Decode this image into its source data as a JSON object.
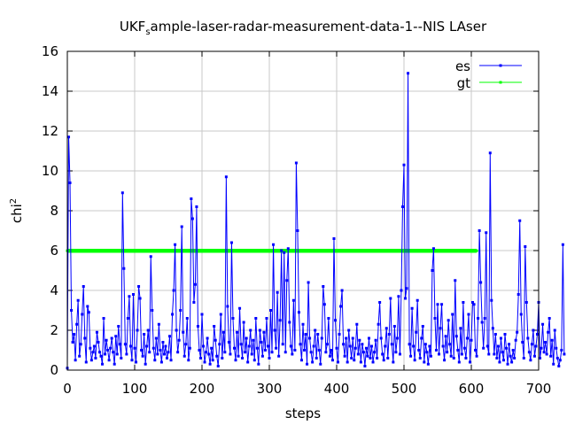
{
  "chart_data": {
    "type": "line",
    "title_main": "UKF",
    "title_sub": "s",
    "title_rest": "ample-laser-radar-measurement-data-1--NIS LAser",
    "xlabel": "steps",
    "ylabel_base": "chi",
    "ylabel_sup": "2",
    "xlim": [
      0,
      700
    ],
    "ylim": [
      0,
      16
    ],
    "xticks": [
      "0",
      "100",
      "200",
      "300",
      "400",
      "500",
      "600",
      "700"
    ],
    "yticks": [
      "0",
      "2",
      "4",
      "6",
      "8",
      "10",
      "12",
      "14",
      "16"
    ],
    "grid": true,
    "legend_position": "top-right",
    "series": [
      {
        "name": "es",
        "color": "#0000ff",
        "x_start": 0,
        "x_step": 2,
        "values": [
          0.1,
          11.7,
          9.4,
          3.0,
          1.4,
          1.8,
          0.5,
          2.3,
          3.5,
          0.7,
          1.3,
          2.8,
          4.2,
          1.6,
          0.4,
          3.2,
          2.9,
          1.1,
          0.5,
          0.9,
          1.2,
          0.6,
          1.9,
          1.4,
          0.9,
          0.7,
          0.3,
          2.6,
          0.8,
          1.5,
          1.0,
          0.5,
          1.1,
          1.6,
          0.9,
          0.3,
          1.7,
          0.8,
          2.2,
          1.3,
          0.6,
          8.9,
          5.1,
          1.3,
          0.8,
          2.6,
          3.7,
          1.2,
          0.5,
          3.8,
          1.1,
          0.4,
          2.0,
          4.2,
          3.6,
          1.0,
          0.7,
          1.8,
          0.3,
          1.2,
          2.0,
          0.9,
          5.7,
          3.0,
          1.1,
          0.5,
          1.6,
          0.8,
          2.3,
          1.0,
          0.4,
          1.4,
          0.8,
          1.2,
          0.6,
          0.9,
          1.7,
          0.5,
          2.8,
          4.0,
          6.3,
          2.0,
          0.9,
          1.5,
          3.0,
          7.2,
          1.9,
          0.7,
          1.3,
          2.6,
          0.5,
          1.1,
          8.6,
          7.6,
          3.4,
          4.3,
          8.2,
          2.2,
          1.0,
          0.6,
          2.8,
          1.2,
          0.4,
          0.9,
          1.6,
          0.8,
          0.3,
          1.1,
          0.5,
          2.2,
          1.5,
          0.7,
          0.2,
          1.3,
          2.8,
          0.6,
          1.9,
          0.9,
          9.7,
          3.2,
          1.4,
          0.8,
          6.4,
          2.6,
          1.1,
          0.5,
          1.9,
          0.7,
          3.1,
          1.3,
          0.6,
          2.4,
          0.9,
          1.6,
          0.4,
          1.2,
          2.0,
          0.8,
          1.5,
          0.5,
          2.6,
          1.1,
          0.3,
          2.0,
          1.4,
          0.7,
          1.9,
          1.0,
          2.6,
          1.2,
          0.6,
          3.0,
          0.9,
          6.3,
          2.0,
          1.1,
          3.9,
          0.7,
          2.5,
          6.0,
          1.3,
          5.9,
          0.9,
          4.5,
          6.1,
          2.4,
          1.2,
          0.8,
          3.5,
          1.0,
          10.4,
          7.0,
          2.9,
          1.3,
          0.5,
          2.3,
          1.0,
          1.8,
          0.3,
          4.4,
          1.6,
          0.9,
          0.4,
          1.2,
          2.0,
          0.6,
          1.8,
          1.0,
          0.3,
          1.6,
          4.2,
          3.3,
          0.9,
          1.3,
          2.6,
          0.7,
          1.0,
          0.5,
          6.6,
          2.5,
          1.1,
          0.4,
          1.8,
          3.2,
          4.0,
          1.3,
          0.7,
          1.6,
          0.4,
          2.0,
          1.2,
          0.6,
          1.6,
          0.5,
          1.1,
          2.3,
          0.8,
          1.5,
          0.4,
          1.3,
          0.9,
          0.2,
          1.1,
          0.7,
          1.6,
          0.6,
          1.2,
          0.4,
          0.9,
          1.5,
          0.6,
          2.3,
          3.4,
          1.6,
          0.8,
          0.5,
          1.2,
          2.1,
          0.6,
          1.8,
          3.6,
          1.3,
          0.4,
          2.2,
          0.9,
          1.6,
          3.7,
          0.8,
          4.0,
          8.2,
          10.3,
          3.6,
          4.1,
          14.9,
          1.3,
          0.7,
          3.1,
          1.2,
          0.5,
          1.9,
          3.5,
          1.0,
          0.6,
          1.6,
          2.2,
          0.4,
          1.3,
          0.9,
          0.3,
          1.2,
          0.7,
          5.0,
          6.1,
          2.6,
          1.0,
          3.3,
          0.8,
          2.1,
          3.3,
          1.2,
          0.5,
          1.7,
          0.9,
          2.5,
          1.3,
          0.7,
          2.8,
          0.6,
          4.5,
          1.7,
          1.0,
          0.4,
          2.1,
          0.8,
          3.4,
          1.1,
          0.6,
          1.6,
          2.8,
          0.4,
          1.5,
          3.4,
          3.3,
          1.0,
          0.7,
          2.6,
          7.0,
          4.4,
          2.4,
          1.1,
          2.6,
          6.9,
          1.2,
          0.8,
          10.9,
          3.5,
          2.1,
          0.8,
          1.8,
          0.6,
          1.2,
          0.4,
          1.6,
          0.9,
          0.5,
          1.8,
          1.1,
          0.3,
          1.3,
          0.7,
          0.4,
          1.0,
          0.6,
          1.5,
          1.9,
          3.8,
          7.5,
          2.8,
          1.4,
          0.6,
          6.2,
          3.4,
          1.6,
          0.9,
          0.5,
          1.3,
          2.0,
          0.7,
          1.2,
          1.8,
          3.4,
          0.6,
          1.1,
          2.3,
          0.9,
          1.4,
          0.8,
          1.9,
          2.6,
          0.7,
          1.5,
          0.3,
          2.0,
          1.1,
          0.6,
          0.2,
          0.5,
          1.0,
          6.3,
          0.8
        ]
      },
      {
        "name": "gt",
        "color": "#00ff00",
        "x": [
          0,
          608
        ],
        "values": [
          5.991,
          5.991
        ]
      }
    ]
  }
}
